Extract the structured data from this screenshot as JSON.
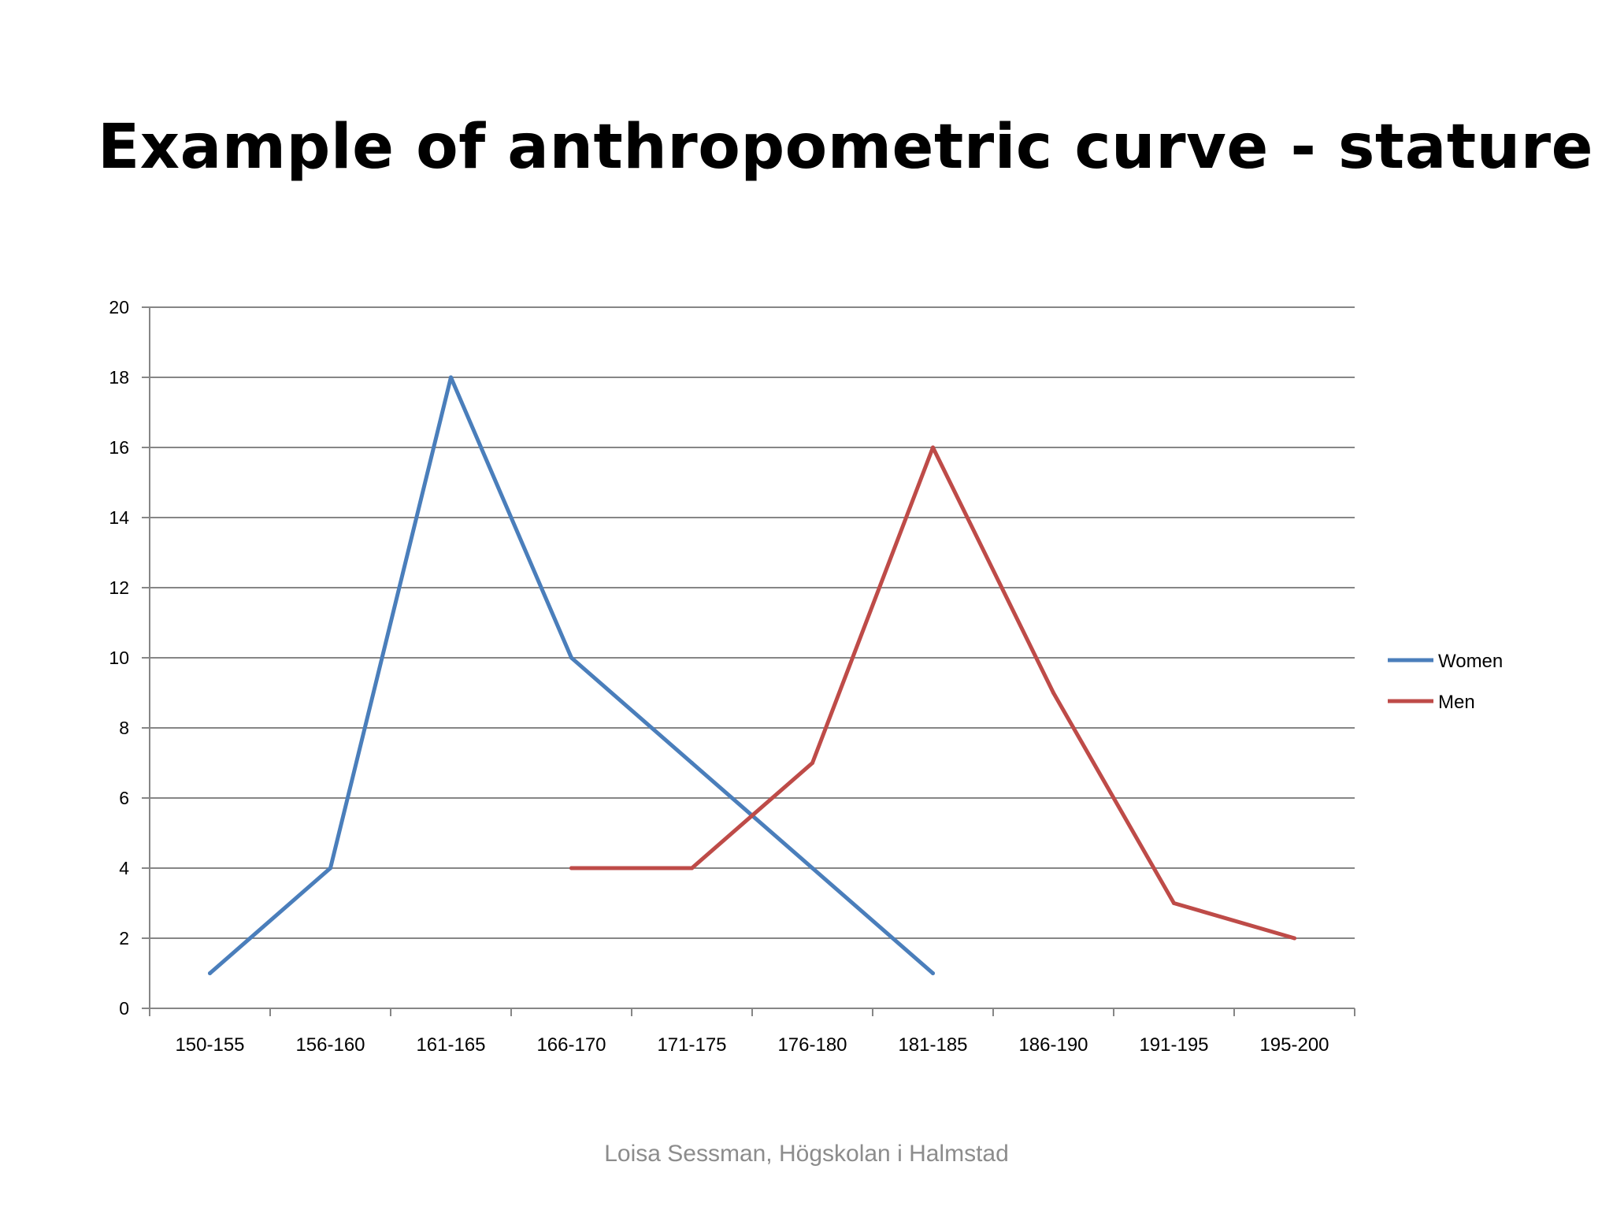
{
  "slide": {
    "title": "Example of anthropometric curve - stature",
    "footer": "Loisa Sessman, Högskolan i Halmstad"
  },
  "chart_data": {
    "type": "line",
    "title": "",
    "xlabel": "",
    "ylabel": "",
    "categories": [
      "150-155",
      "156-160",
      "161-165",
      "166-170",
      "171-175",
      "176-180",
      "181-185",
      "186-190",
      "191-195",
      "195-200"
    ],
    "series": [
      {
        "name": "Women",
        "color": "#4a7ebb",
        "values": [
          1,
          4,
          18,
          10,
          7,
          4,
          1,
          null,
          null,
          null
        ]
      },
      {
        "name": "Men",
        "color": "#be4b48",
        "values": [
          null,
          null,
          null,
          4,
          4,
          7,
          16,
          9,
          3,
          2
        ]
      }
    ],
    "ylim": [
      0,
      20
    ],
    "yticks": [
      0,
      2,
      4,
      6,
      8,
      10,
      12,
      14,
      16,
      18,
      20
    ],
    "grid": true,
    "legend": "right",
    "colors": {
      "grid": "#868686",
      "axis": "#868686",
      "text": "#000000"
    }
  }
}
